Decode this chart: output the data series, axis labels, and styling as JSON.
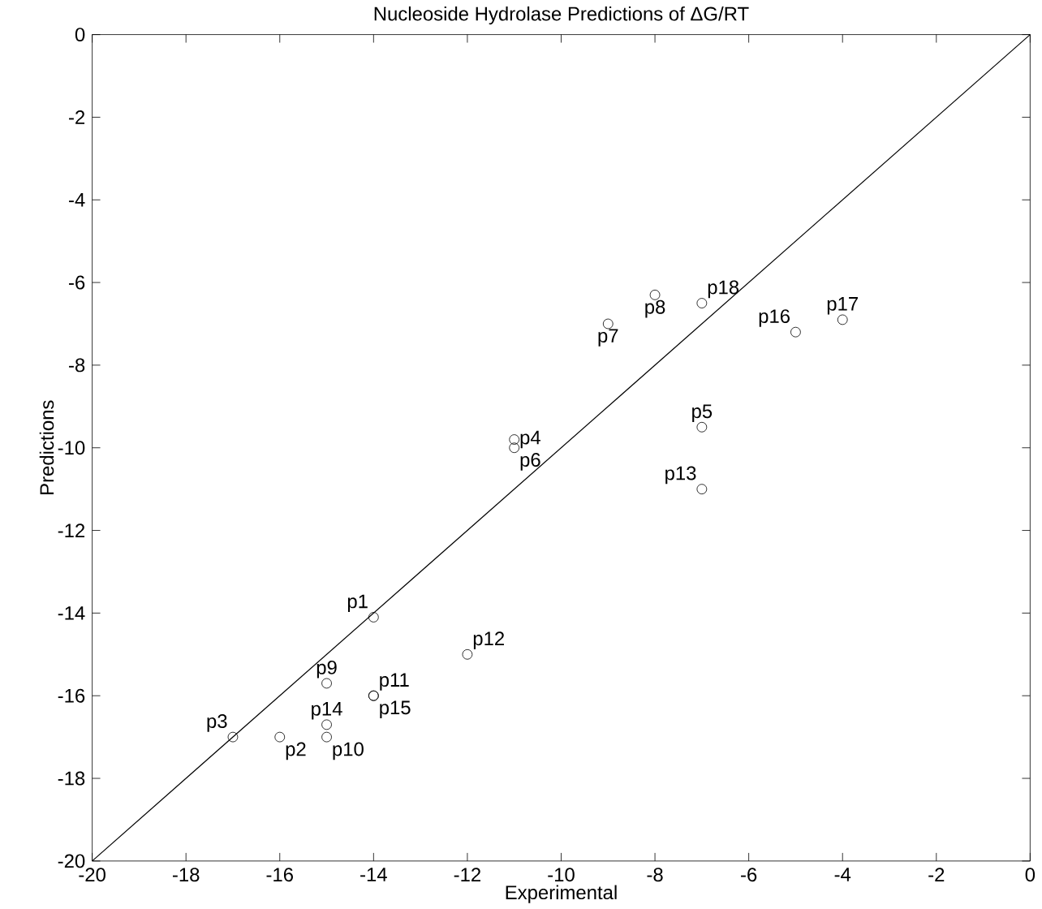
{
  "chart_data": {
    "type": "scatter",
    "title": "Nucleoside Hydrolase Predictions of ΔG/RT",
    "xlabel": "Experimental",
    "ylabel": "Predictions",
    "xlim": [
      -20,
      0
    ],
    "ylim": [
      -20,
      0
    ],
    "xticks": [
      -20,
      -18,
      -16,
      -14,
      -12,
      -10,
      -8,
      -6,
      -4,
      -2,
      0
    ],
    "yticks": [
      -20,
      -18,
      -16,
      -14,
      -12,
      -10,
      -8,
      -6,
      -4,
      -2,
      0
    ],
    "grid": false,
    "series": [
      {
        "marker": "circle",
        "color": "#000000",
        "x": [
          -14,
          -16,
          -17,
          -11,
          -7,
          -11,
          -9,
          -8,
          -15,
          -15,
          -14,
          -12,
          -7,
          -15,
          -14,
          -5,
          -4,
          -7
        ],
        "values": [
          -14.1,
          -17,
          -17,
          -9.8,
          -9.5,
          -10,
          -7,
          -6.3,
          -15.7,
          -17,
          -16,
          -15,
          -11,
          -16.7,
          -16,
          -7.2,
          -6.9,
          -6.5
        ]
      },
      {
        "type": "line",
        "marker": "none",
        "line_style": "solid",
        "color": "#000000",
        "x": [
          -20,
          0
        ],
        "values": [
          -20,
          0
        ]
      }
    ],
    "annotations": [
      {
        "text": "p1",
        "x": -14,
        "y": -14.1
      },
      {
        "text": "p2",
        "x": -16,
        "y": -17
      },
      {
        "text": "p3",
        "x": -17,
        "y": -17
      },
      {
        "text": "p4",
        "x": -11,
        "y": -9.8
      },
      {
        "text": "p5",
        "x": -7,
        "y": -9.5
      },
      {
        "text": "p6",
        "x": -11,
        "y": -10
      },
      {
        "text": "p7",
        "x": -9,
        "y": -7
      },
      {
        "text": "p8",
        "x": -8,
        "y": -6.3
      },
      {
        "text": "p9",
        "x": -15,
        "y": -15.7
      },
      {
        "text": "p10",
        "x": -15,
        "y": -17
      },
      {
        "text": "p11",
        "x": -14,
        "y": -16
      },
      {
        "text": "p12",
        "x": -12,
        "y": -15
      },
      {
        "text": "p13",
        "x": -7,
        "y": -11
      },
      {
        "text": "p14",
        "x": -15,
        "y": -16.7
      },
      {
        "text": "p15",
        "x": -14,
        "y": -16
      },
      {
        "text": "p16",
        "x": -5,
        "y": -7.2
      },
      {
        "text": "p17",
        "x": -4,
        "y": -6.9
      },
      {
        "text": "p18",
        "x": -7,
        "y": -6.5
      }
    ]
  }
}
